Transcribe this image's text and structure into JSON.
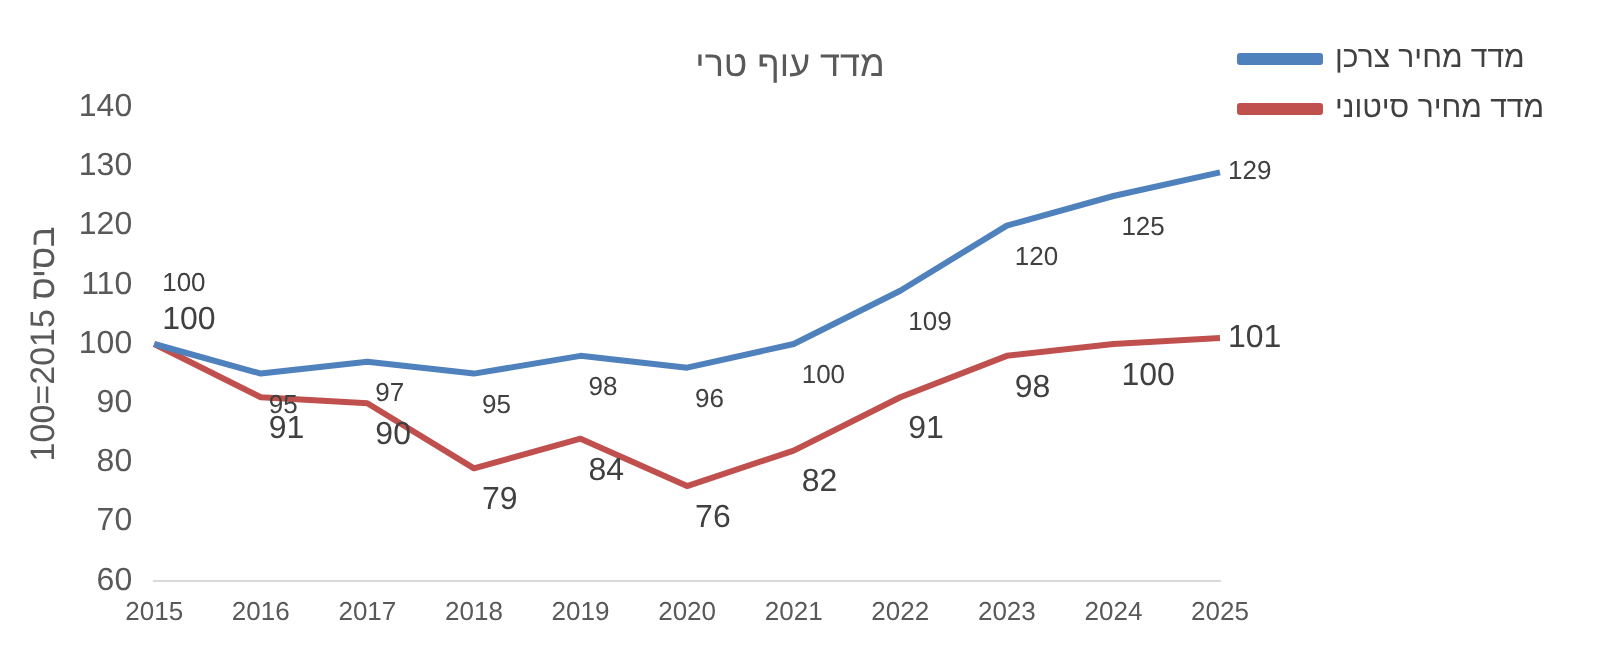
{
  "chart_data": {
    "type": "line",
    "title": "מדד עוף טרי",
    "ylabel": "בסיס 2015=100",
    "categories": [
      "2015",
      "2016",
      "2017",
      "2018",
      "2019",
      "2020",
      "2021",
      "2022",
      "2023",
      "2024",
      "2025"
    ],
    "series": [
      {
        "name": "מדד מחיר צרכן",
        "color": "#4f81bd",
        "values": [
          100,
          95,
          97,
          95,
          98,
          96,
          100,
          109,
          120,
          125,
          129
        ]
      },
      {
        "name": "מדד מחיר סיטוני",
        "color": "#c0504d",
        "values": [
          100,
          91,
          90,
          79,
          84,
          76,
          82,
          91,
          98,
          100,
          101
        ]
      }
    ],
    "ylim": [
      60,
      140
    ],
    "yticks": [
      60,
      70,
      80,
      90,
      100,
      110,
      120,
      130,
      140
    ],
    "grid": false,
    "legend": "top right",
    "marker": "none",
    "line_style": "solid",
    "data_labels": true
  }
}
